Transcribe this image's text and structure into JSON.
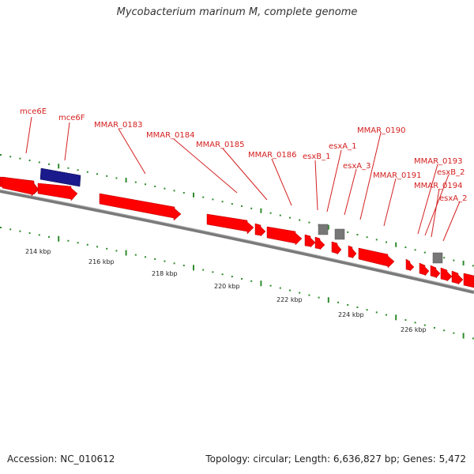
{
  "title": "Mycobacterium marinum M, complete genome",
  "accession": "Accession: NC_010612",
  "summary": "Topology: circular; Length: 6,636,827 bp; Genes: 5,472",
  "colors": {
    "forward_gene": "#ff0000",
    "selected_gene": "#1a1a8c",
    "rna_feature": "#777777",
    "label": "#d42020",
    "ticks": "#2e8b2e",
    "backbone": "#8a8a8a"
  },
  "gene_labels": [
    "mce6E",
    "mce6F",
    "MMAR_0183",
    "MMAR_0184",
    "MMAR_0185",
    "MMAR_0186",
    "esxB_1",
    "esxA_1",
    "esxA_3",
    "MMAR_0190",
    "MMAR_0191",
    "MMAR_0193",
    "esxB_2",
    "MMAR_0194",
    "esxA_2"
  ],
  "scale_labels": [
    "214 kbp",
    "216 kbp",
    "218 kbp",
    "220 kbp",
    "222 kbp",
    "224 kbp",
    "226 kbp"
  ]
}
